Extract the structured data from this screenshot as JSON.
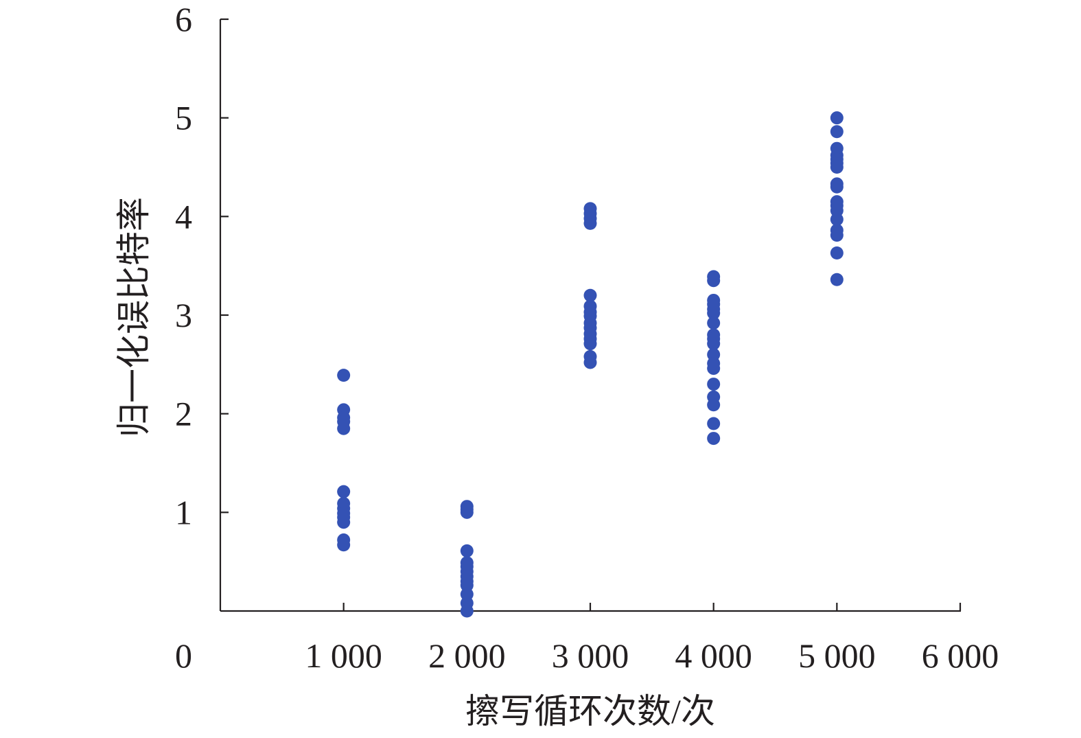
{
  "chart_data": {
    "type": "scatter",
    "xlabel": "擦写循环次数/次",
    "ylabel": "归一化误比特率",
    "xlim": [
      0,
      6000
    ],
    "ylim": [
      0,
      6
    ],
    "x_ticks": [
      0,
      1000,
      2000,
      3000,
      4000,
      5000,
      6000
    ],
    "x_tick_labels": [
      "0",
      "1 000",
      "2 000",
      "3 000",
      "4 000",
      "5 000",
      "6 000"
    ],
    "y_ticks": [
      1,
      2,
      3,
      4,
      5,
      6
    ],
    "y_tick_labels": [
      "1",
      "2",
      "3",
      "4",
      "5",
      "6"
    ],
    "grid": false,
    "legend": "none",
    "marker_color": "#3452B4",
    "axis_color": "#231F20",
    "series": [
      {
        "points": [
          [
            1000,
            2.39
          ],
          [
            1000,
            2.04
          ],
          [
            1000,
            1.96
          ],
          [
            1000,
            1.92
          ],
          [
            1000,
            1.85
          ],
          [
            1000,
            1.21
          ],
          [
            1000,
            1.09
          ],
          [
            1000,
            1.04
          ],
          [
            1000,
            0.99
          ],
          [
            1000,
            0.95
          ],
          [
            1000,
            0.9
          ],
          [
            1000,
            0.72
          ],
          [
            1000,
            0.67
          ],
          [
            2000,
            1.06
          ],
          [
            2000,
            1.03
          ],
          [
            2000,
            1.0
          ],
          [
            2000,
            0.61
          ],
          [
            2000,
            0.49
          ],
          [
            2000,
            0.45
          ],
          [
            2000,
            0.4
          ],
          [
            2000,
            0.35
          ],
          [
            2000,
            0.3
          ],
          [
            2000,
            0.26
          ],
          [
            2000,
            0.17
          ],
          [
            2000,
            0.08
          ],
          [
            2000,
            0.0
          ],
          [
            3000,
            4.08
          ],
          [
            3000,
            4.03
          ],
          [
            3000,
            3.98
          ],
          [
            3000,
            3.93
          ],
          [
            3000,
            3.2
          ],
          [
            3000,
            3.09
          ],
          [
            3000,
            3.03
          ],
          [
            3000,
            2.99
          ],
          [
            3000,
            2.92
          ],
          [
            3000,
            2.87
          ],
          [
            3000,
            2.81
          ],
          [
            3000,
            2.76
          ],
          [
            3000,
            2.71
          ],
          [
            3000,
            2.58
          ],
          [
            3000,
            2.52
          ],
          [
            4000,
            3.39
          ],
          [
            4000,
            3.35
          ],
          [
            4000,
            3.15
          ],
          [
            4000,
            3.11
          ],
          [
            4000,
            3.06
          ],
          [
            4000,
            3.02
          ],
          [
            4000,
            2.92
          ],
          [
            4000,
            2.8
          ],
          [
            4000,
            2.76
          ],
          [
            4000,
            2.71
          ],
          [
            4000,
            2.6
          ],
          [
            4000,
            2.51
          ],
          [
            4000,
            2.46
          ],
          [
            4000,
            2.3
          ],
          [
            4000,
            2.17
          ],
          [
            4000,
            2.09
          ],
          [
            4000,
            1.9
          ],
          [
            4000,
            1.75
          ],
          [
            5000,
            5.0
          ],
          [
            5000,
            4.86
          ],
          [
            5000,
            4.69
          ],
          [
            5000,
            4.62
          ],
          [
            5000,
            4.58
          ],
          [
            5000,
            4.54
          ],
          [
            5000,
            4.5
          ],
          [
            5000,
            4.33
          ],
          [
            5000,
            4.3
          ],
          [
            5000,
            4.15
          ],
          [
            5000,
            4.11
          ],
          [
            5000,
            4.06
          ],
          [
            5000,
            3.97
          ],
          [
            5000,
            3.86
          ],
          [
            5000,
            3.81
          ],
          [
            5000,
            3.63
          ],
          [
            5000,
            3.36
          ]
        ]
      }
    ]
  }
}
